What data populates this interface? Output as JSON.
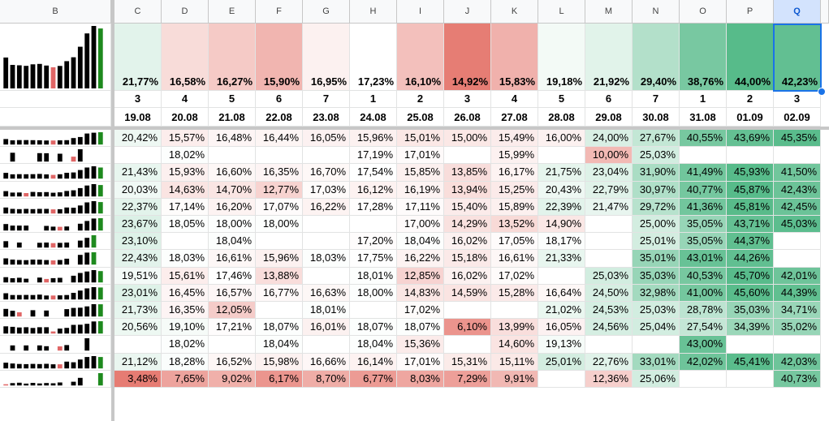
{
  "columns": {
    "b": "B",
    "letters": [
      "C",
      "D",
      "E",
      "F",
      "G",
      "H",
      "I",
      "J",
      "K",
      "L",
      "M",
      "N",
      "O",
      "P",
      "Q"
    ],
    "selected": "Q"
  },
  "summary": {
    "totals": [
      "21,77%",
      "16,58%",
      "16,27%",
      "15,90%",
      "16,95%",
      "17,23%",
      "16,10%",
      "14,92%",
      "15,83%",
      "19,18%",
      "21,92%",
      "29,40%",
      "38,76%",
      "44,00%",
      "42,23%"
    ],
    "weekdays": [
      "3",
      "4",
      "5",
      "6",
      "7",
      "1",
      "2",
      "3",
      "4",
      "5",
      "6",
      "7",
      "1",
      "2",
      "3"
    ],
    "dates": [
      "19.08",
      "20.08",
      "21.08",
      "22.08",
      "23.08",
      "24.08",
      "25.08",
      "26.08",
      "27.08",
      "28.08",
      "29.08",
      "30.08",
      "31.08",
      "01.09",
      "02.09"
    ]
  },
  "rows": [
    [
      "20,42%",
      "15,57%",
      "16,48%",
      "16,44%",
      "16,05%",
      "15,96%",
      "15,01%",
      "15,00%",
      "15,49%",
      "16,00%",
      "24,00%",
      "27,67%",
      "40,55%",
      "43,69%",
      "45,35%"
    ],
    [
      "",
      "18,02%",
      "",
      "",
      "",
      "17,19%",
      "17,01%",
      "",
      "15,99%",
      "",
      "10,00%",
      "25,03%",
      "",
      "",
      ""
    ],
    [
      "21,43%",
      "15,93%",
      "16,60%",
      "16,35%",
      "16,70%",
      "17,54%",
      "15,85%",
      "13,85%",
      "16,17%",
      "21,75%",
      "23,04%",
      "31,90%",
      "41,49%",
      "45,93%",
      "41,50%"
    ],
    [
      "20,03%",
      "14,63%",
      "14,70%",
      "12,77%",
      "17,03%",
      "16,12%",
      "16,19%",
      "13,94%",
      "15,25%",
      "20,43%",
      "22,79%",
      "30,97%",
      "40,77%",
      "45,87%",
      "42,43%"
    ],
    [
      "22,37%",
      "17,14%",
      "16,20%",
      "17,07%",
      "16,22%",
      "17,28%",
      "17,11%",
      "15,40%",
      "15,89%",
      "22,39%",
      "21,47%",
      "29,72%",
      "41,36%",
      "45,81%",
      "42,45%"
    ],
    [
      "23,67%",
      "18,05%",
      "18,00%",
      "18,00%",
      "",
      "",
      "17,00%",
      "14,29%",
      "13,52%",
      "14,90%",
      "",
      "25,00%",
      "35,05%",
      "43,71%",
      "45,03%"
    ],
    [
      "23,10%",
      "",
      "18,04%",
      "",
      "",
      "17,20%",
      "18,04%",
      "16,02%",
      "17,05%",
      "18,17%",
      "",
      "25,01%",
      "35,05%",
      "44,37%",
      ""
    ],
    [
      "22,43%",
      "18,03%",
      "16,61%",
      "15,96%",
      "18,03%",
      "17,75%",
      "16,22%",
      "15,18%",
      "16,61%",
      "21,33%",
      "",
      "35,01%",
      "43,01%",
      "44,26%",
      ""
    ],
    [
      "19,51%",
      "15,61%",
      "17,46%",
      "13,88%",
      "",
      "18,01%",
      "12,85%",
      "16,02%",
      "17,02%",
      "",
      "25,03%",
      "35,03%",
      "40,53%",
      "45,70%",
      "42,01%"
    ],
    [
      "23,01%",
      "16,45%",
      "16,57%",
      "16,77%",
      "16,63%",
      "18,00%",
      "14,83%",
      "14,59%",
      "15,28%",
      "16,64%",
      "24,50%",
      "32,98%",
      "41,00%",
      "45,60%",
      "44,39%"
    ],
    [
      "21,73%",
      "16,35%",
      "12,05%",
      "",
      "18,01%",
      "",
      "17,02%",
      "",
      "",
      "21,02%",
      "24,53%",
      "25,03%",
      "28,78%",
      "35,03%",
      "34,71%"
    ],
    [
      "20,56%",
      "19,10%",
      "17,21%",
      "18,07%",
      "16,01%",
      "18,07%",
      "18,07%",
      "6,10%",
      "13,99%",
      "16,05%",
      "24,56%",
      "25,04%",
      "27,54%",
      "34,39%",
      "35,02%"
    ],
    [
      "",
      "18,02%",
      "",
      "18,04%",
      "",
      "18,04%",
      "15,36%",
      "",
      "14,60%",
      "19,13%",
      "",
      "",
      "43,00%",
      "",
      ""
    ],
    [
      "21,12%",
      "18,28%",
      "16,52%",
      "15,98%",
      "16,66%",
      "16,14%",
      "17,01%",
      "15,31%",
      "15,11%",
      "25,01%",
      "22,76%",
      "33,01%",
      "42,02%",
      "45,41%",
      "42,03%"
    ],
    [
      "3,48%",
      "7,65%",
      "9,02%",
      "6,17%",
      "8,70%",
      "6,77%",
      "8,03%",
      "7,29%",
      "9,91%",
      "",
      "12,36%",
      "25,06%",
      "",
      "",
      "40,73%"
    ]
  ],
  "colors": {
    "grid_line": "#e2e3e3",
    "header_bg": "#f8f9fa",
    "selected_header_bg": "#d3e3fd",
    "selection_border": "#1a73e8",
    "spark_bar": "#000000",
    "spark_last": "#1e8a1e",
    "spark_low": "#e06666",
    "scale_min": "#e67c73",
    "scale_mid": "#ffffff",
    "scale_max": "#57bb8a"
  }
}
